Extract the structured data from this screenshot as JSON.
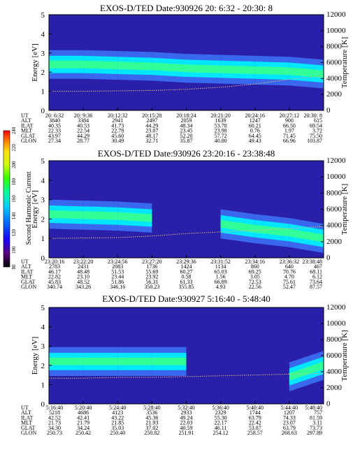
{
  "colors": {
    "background_spectrum": "#2a1fa8",
    "band_core": "#33ff99",
    "band_mid": "#00e6ff",
    "band_edge": "#3d7bff",
    "temperature_trace": "#d9b37a",
    "colorbar": [
      "#000000",
      "#5a0080",
      "#1a00ff",
      "#0066ff",
      "#00ccff",
      "#00ff99",
      "#33ff00",
      "#ccff00",
      "#ffdd00",
      "#ff7700",
      "#ff0000"
    ]
  },
  "colorbar": {
    "label": "Second Harmonic Current",
    "ticks": [
      "80",
      "100",
      "120",
      "140",
      "160",
      "180",
      "200",
      "220",
      "240"
    ]
  },
  "chart_data": [
    {
      "type": "heatmap",
      "title": "EXOS-D/TED   Date:930926  20: 6:32 - 20:30: 8",
      "ylabel": "Energy [eV]",
      "y2label": "Temperature [K]",
      "ylim": [
        0,
        5
      ],
      "y2lim": [
        0,
        12000
      ],
      "yticks": [
        "0",
        "1",
        "2",
        "3",
        "4",
        "5"
      ],
      "y2ticks": [
        "0",
        "2000",
        "4000",
        "6000",
        "8000",
        "10000",
        "12000"
      ],
      "band_center_eV": [
        2.4,
        2.4,
        2.35,
        2.3,
        2.2,
        2.15,
        2.1,
        2.05,
        1.9
      ],
      "temperature_K": [
        2400,
        2400,
        2450,
        2500,
        2650,
        2900,
        3300,
        3900,
        4300
      ],
      "ephemeris": {
        "labels": [
          "UT",
          "ALT",
          "ILAT",
          "MLT",
          "GLAT",
          "GLON"
        ],
        "columns": [
          [
            "20: 6:32",
            "3840",
            "40.35",
            "22.33",
            "43.97",
            "27.34"
          ],
          [
            "20: 9:36",
            "3384",
            "40.53",
            "22.54",
            "44.29",
            "28.77"
          ],
          [
            "20:12:32",
            "2941",
            "41.73",
            "22.78",
            "45.60",
            "30.49"
          ],
          [
            "20:15:28",
            "2497",
            "44.29",
            "23.07",
            "48.17",
            "32.71"
          ],
          [
            "20:18:24",
            "2059",
            "48.34",
            "23.45",
            "52.20",
            "35.87"
          ],
          [
            "20:21:20",
            "1639",
            "53.78",
            "23.98",
            "57.72",
            "40.80"
          ],
          [
            "20:24:16",
            "1247",
            "60.21",
            "0.76",
            "64.45",
            "49.43"
          ],
          [
            "20:27:12",
            "900",
            "66.50",
            "1.97",
            "71.45",
            "66.96"
          ],
          [
            "20:30: 8",
            "615",
            "69.54",
            "3.72",
            "75.50",
            "103.87"
          ]
        ]
      }
    },
    {
      "type": "heatmap",
      "title": "EXOS-D/TED   Date:930926  23:20:16 - 23:38:48",
      "ylabel": "Energy [eV]",
      "y2label": "Temperature [K]",
      "ylim": [
        0,
        5
      ],
      "y2lim": [
        0,
        12000
      ],
      "yticks": [
        "0",
        "1",
        "2",
        "3",
        "4",
        "5"
      ],
      "y2ticks": [
        "0",
        "2000",
        "4000",
        "6000",
        "8000",
        "10000",
        "12000"
      ],
      "band_center_eV": [
        2.25,
        2.2,
        2.15,
        2.05,
        null,
        1.75,
        1.5,
        1.3,
        1.0
      ],
      "temperature_K": [
        2400,
        2450,
        2500,
        2700,
        3000,
        3200,
        3400,
        3600,
        3900
      ],
      "ephemeris": {
        "labels": [
          "UT",
          "ALT",
          "ILAT",
          "MLT",
          "GLAT",
          "GLON"
        ],
        "columns": [
          [
            "23:20:16",
            "2783",
            "46.17",
            "22.82",
            "45.83",
            "340.74"
          ],
          [
            "23:22:20",
            "2431",
            "48.48",
            "23.10",
            "48.52",
            "343.26"
          ],
          [
            "23:24:56",
            "2083",
            "51.53",
            "23.44",
            "51.86",
            "346.16"
          ],
          [
            "23:27:20",
            "1736",
            "55.69",
            "23.92",
            "56.31",
            "350.23"
          ],
          [
            "23:29:36",
            "1424",
            "60.27",
            "0.58",
            "61.33",
            "355.85"
          ],
          [
            "23:31:52",
            "1134",
            "65.03",
            "1.56",
            "66.89",
            "4.93"
          ],
          [
            "23:34:16",
            "860",
            "69.25",
            "3.05",
            "72.53",
            "22.56"
          ],
          [
            "23:36:32",
            "640",
            "70.76",
            "4.70",
            "75.61",
            "52.47"
          ],
          [
            "23:38:48",
            "467",
            "68.11",
            "6.12",
            "73.64",
            "87.57"
          ]
        ]
      }
    },
    {
      "type": "heatmap",
      "title": "EXOS-D/TED   Date:930927  5:16:40 - 5:48:40",
      "ylabel": "Energy [eV]",
      "y2label": "Temperature [K]",
      "ylim": [
        0,
        5
      ],
      "y2lim": [
        0,
        12000
      ],
      "yticks": [
        "0",
        "1",
        "2",
        "3",
        "4",
        "5"
      ],
      "y2ticks": [
        "0",
        "2000",
        "4000",
        "6000",
        "8000",
        "10000",
        "12000"
      ],
      "band_center_eV": [
        2.2,
        2.2,
        2.2,
        2.2,
        2.2,
        null,
        null,
        1.4,
        2.0
      ],
      "temperature_K": [
        3200,
        3200,
        3300,
        3300,
        3400,
        3500,
        3600,
        3700,
        3800
      ],
      "ephemeris": {
        "labels": [
          "UT",
          "ALT",
          "ILAT",
          "MLT",
          "GLAT",
          "GLON"
        ],
        "columns": [
          [
            "5:16:40",
            "5218",
            "42.52",
            "21.73",
            "34.30",
            "250.73"
          ],
          [
            "5:20:40",
            "4686",
            "42.41",
            "21.79",
            "34.24",
            "250.42"
          ],
          [
            "5:24:40",
            "4123",
            "43.22",
            "21.85",
            "35.03",
            "250.40"
          ],
          [
            "5:28:40",
            "3536",
            "45.36",
            "21.93",
            "37.02",
            "250.82"
          ],
          [
            "5:32:40",
            "2933",
            "49.24",
            "22.03",
            "40.59",
            "251.91"
          ],
          [
            "5:36:40",
            "2329",
            "55.30",
            "22.17",
            "46.11",
            "254.12"
          ],
          [
            "5:40:40",
            "1744",
            "63.79",
            "22.42",
            "53.87",
            "258.57"
          ],
          [
            "5:44:40",
            "1207",
            "74.33",
            "23.07",
            "63.79",
            "268.63"
          ],
          [
            "5:48:40",
            "757",
            "81.59",
            "3.11",
            "73.73",
            "297.89"
          ]
        ]
      }
    }
  ]
}
